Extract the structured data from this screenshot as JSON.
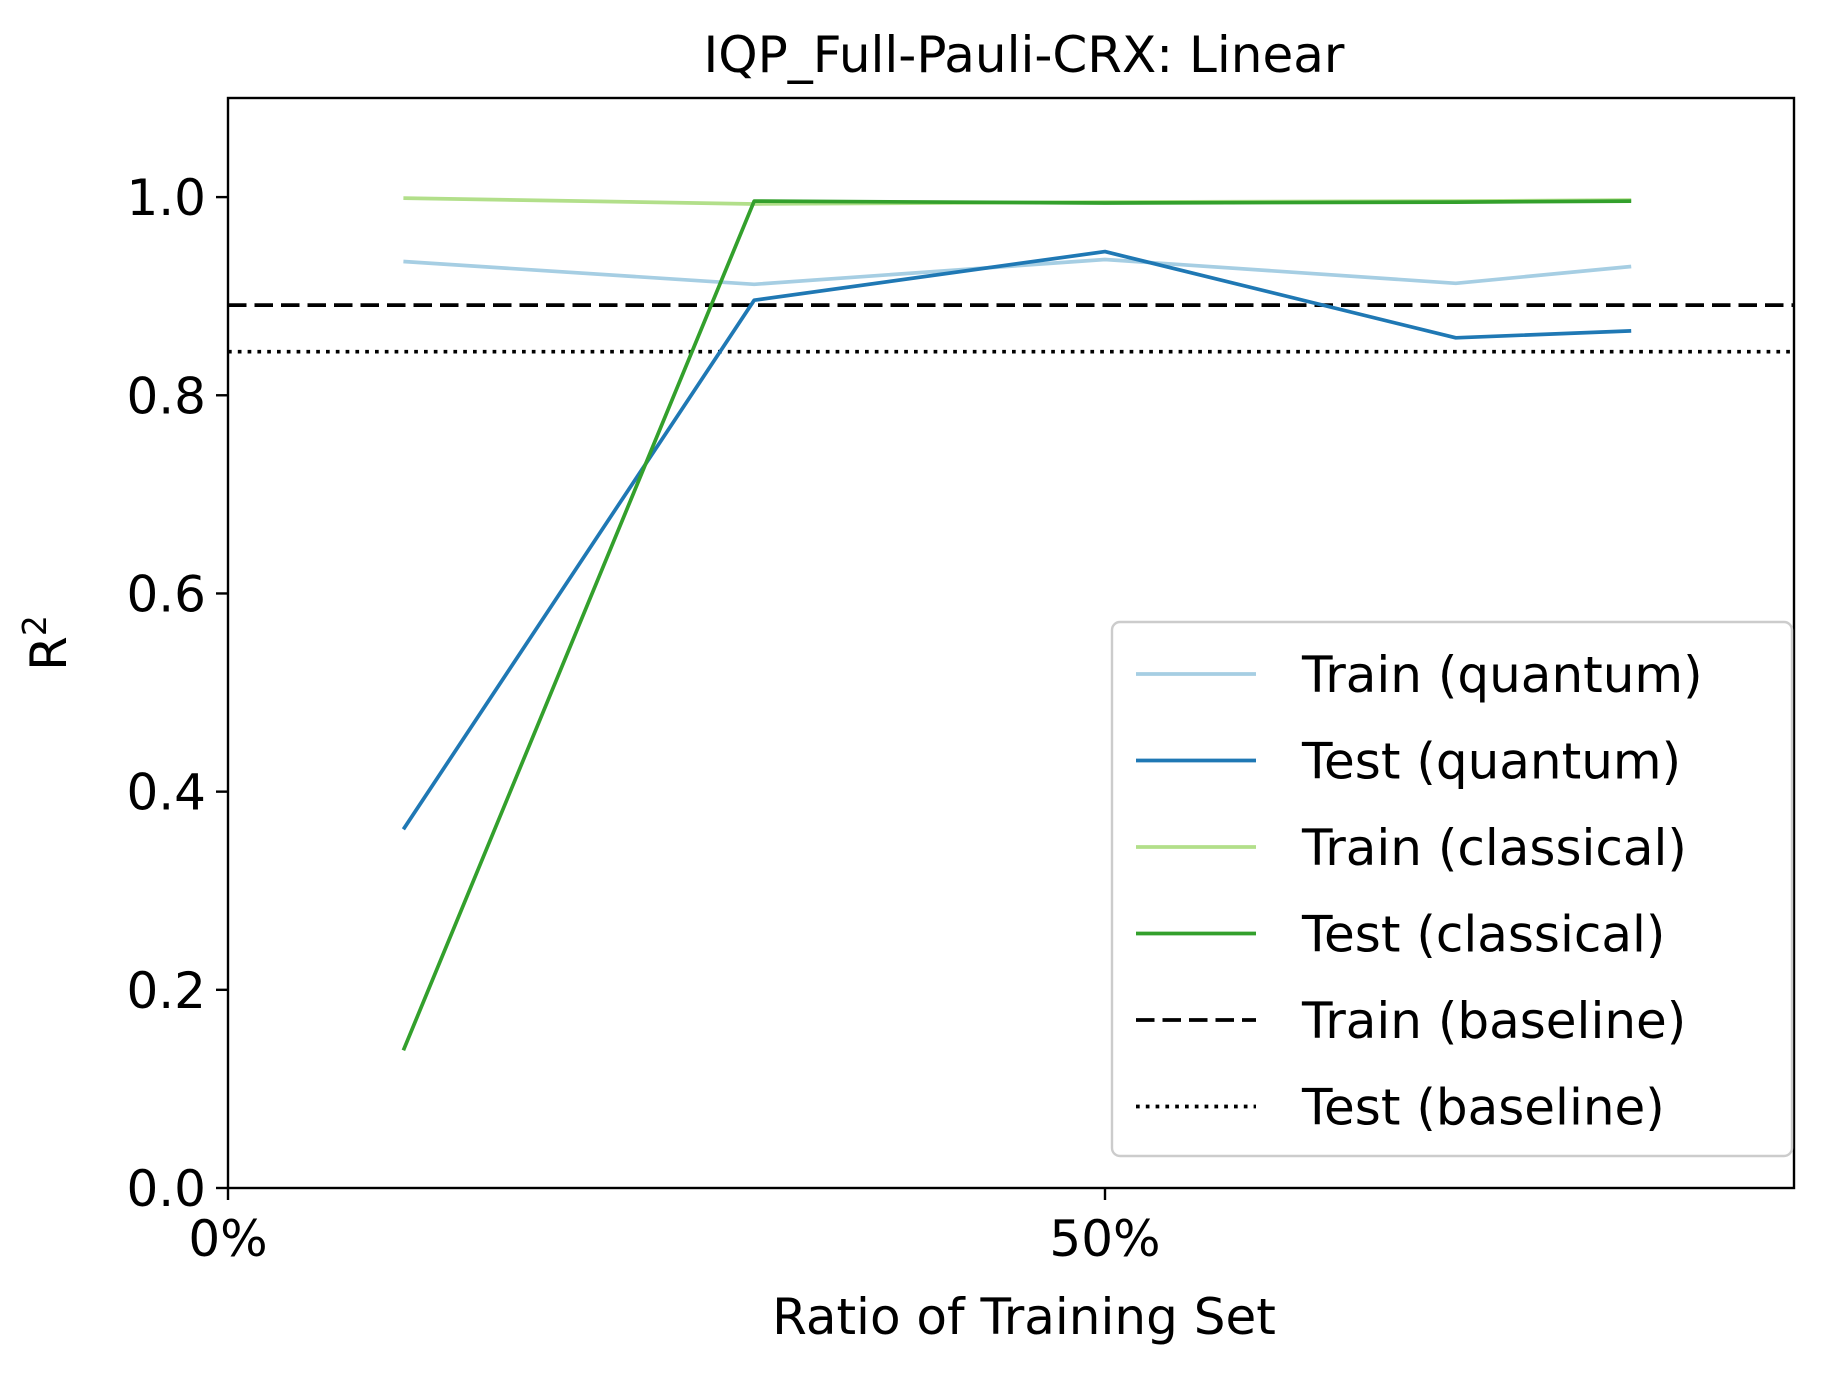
{
  "chart_data": {
    "type": "line",
    "title": "IQP_Full-Pauli-CRX: Linear",
    "xlabel": "Ratio of Training Set",
    "ylabel_base": "R",
    "ylabel_sup": "2",
    "xlim": [
      0,
      0.9
    ],
    "ylim": [
      0,
      1.1
    ],
    "xticks": [
      {
        "value": 0.0,
        "label": "0%"
      },
      {
        "value": 0.5,
        "label": "50%"
      }
    ],
    "yticks": [
      {
        "value": 0.0,
        "label": "0.0"
      },
      {
        "value": 0.2,
        "label": "0.2"
      },
      {
        "value": 0.4,
        "label": "0.4"
      },
      {
        "value": 0.6,
        "label": "0.6"
      },
      {
        "value": 0.8,
        "label": "0.8"
      },
      {
        "value": 1.0,
        "label": "1.0"
      }
    ],
    "x": [
      0.1,
      0.3,
      0.5,
      0.7,
      0.8
    ],
    "series": [
      {
        "name": "Train (quantum)",
        "color": "#a6cee3",
        "style": "solid",
        "values": [
          0.935,
          0.912,
          0.937,
          0.913,
          0.93
        ]
      },
      {
        "name": "Test (quantum)",
        "color": "#1f78b4",
        "style": "solid",
        "values": [
          0.362,
          0.896,
          0.945,
          0.858,
          0.865
        ]
      },
      {
        "name": "Train (classical)",
        "color": "#b2df8a",
        "style": "solid",
        "values": [
          0.999,
          0.993,
          0.995,
          0.996,
          0.997
        ]
      },
      {
        "name": "Test (classical)",
        "color": "#33a02c",
        "style": "solid",
        "values": [
          0.139,
          0.996,
          0.994,
          0.995,
          0.996
        ]
      }
    ],
    "baselines": [
      {
        "name": "Train (baseline)",
        "color": "#000000",
        "style": "dashed",
        "value": 0.891
      },
      {
        "name": "Test (baseline)",
        "color": "#000000",
        "style": "dotted",
        "value": 0.844
      }
    ],
    "legend_position": "lower-right",
    "grid": false
  }
}
